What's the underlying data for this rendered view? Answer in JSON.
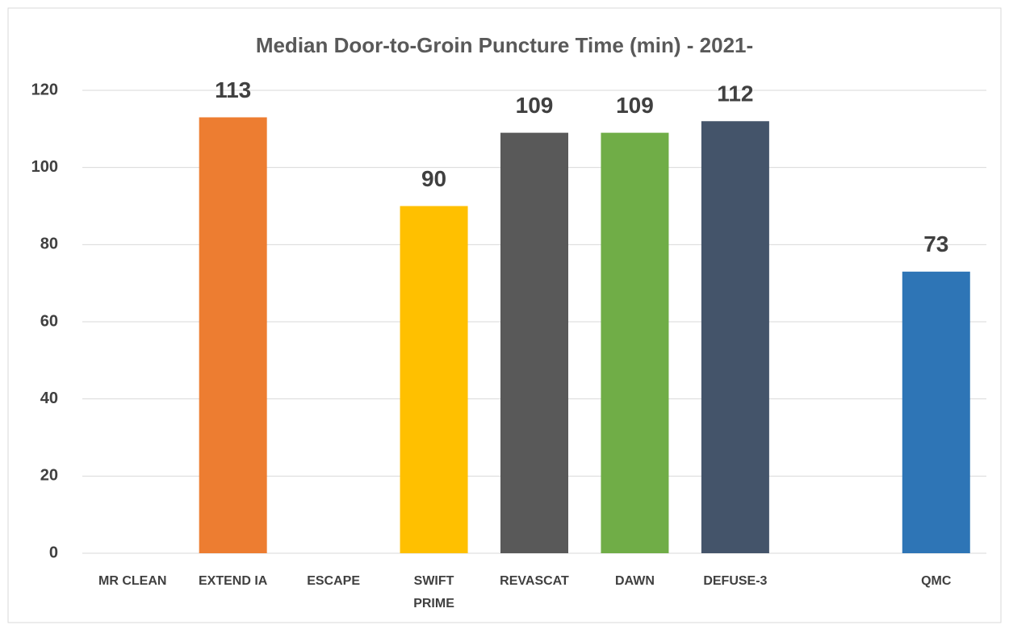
{
  "chart_data": {
    "type": "bar",
    "title": "Median Door-to-Groin Puncture Time (min) - 2021-",
    "categories": [
      "MR CLEAN",
      "EXTEND IA",
      "ESCAPE",
      "SWIFT PRIME",
      "REVASCAT",
      "DAWN",
      "DEFUSE-3",
      null,
      "QMC"
    ],
    "values": [
      null,
      113,
      null,
      90,
      109,
      109,
      112,
      null,
      73
    ],
    "colors": [
      null,
      "#ed7d31",
      null,
      "#ffc000",
      "#595959",
      "#70ad47",
      "#44546a",
      null,
      "#2e75b6"
    ],
    "ylim": [
      0,
      120
    ],
    "yticks": [
      0,
      20,
      40,
      60,
      80,
      100,
      120
    ],
    "grid": true
  }
}
